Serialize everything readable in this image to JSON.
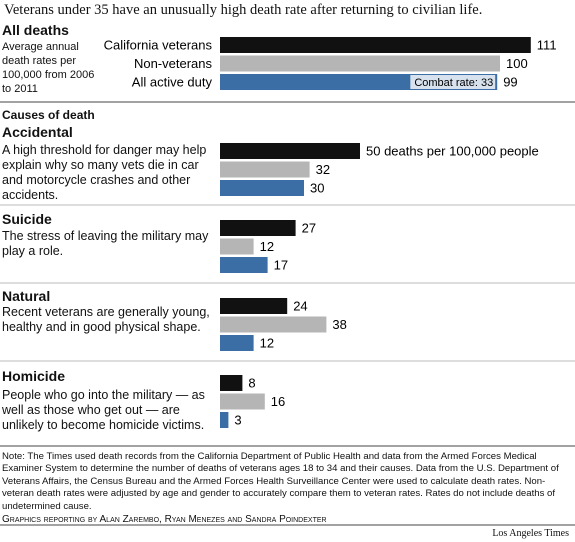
{
  "title": "Veterans under 35 have an unusually high death rate after returning to civilian life.",
  "section_title": "Causes of death",
  "chart_data": [
    {
      "type": "bar",
      "title": "All deaths",
      "subtitle": "Average annual death rates per 100,000 from 2006 to 2011",
      "categories": [
        "California veterans",
        "Non-veterans",
        "All active duty"
      ],
      "values": [
        111,
        100,
        99
      ],
      "colors": [
        "#111111",
        "#b5b5b5",
        "#3a6ea5"
      ],
      "annotation": "Combat rate: 33"
    },
    {
      "type": "bar",
      "title": "Accidental",
      "subtitle": "A high threshold for danger may help explain why so many vets die in car and motorcycle crashes and other accidents.",
      "categories": [
        null,
        null,
        null
      ],
      "values": [
        50,
        32,
        30
      ],
      "value_labels": [
        "50 deaths per 100,000 people",
        "32",
        "30"
      ],
      "colors": [
        "#111111",
        "#b5b5b5",
        "#3a6ea5"
      ]
    },
    {
      "type": "bar",
      "title": "Suicide",
      "subtitle": "The stress of leaving the military may play a role.",
      "categories": [
        null,
        null,
        null
      ],
      "values": [
        27,
        12,
        17
      ],
      "colors": [
        "#111111",
        "#b5b5b5",
        "#3a6ea5"
      ]
    },
    {
      "type": "bar",
      "title": "Natural",
      "subtitle": "Recent veterans are generally young, healthy and in good physical shape.",
      "categories": [
        null,
        null,
        null
      ],
      "values": [
        24,
        38,
        12
      ],
      "colors": [
        "#111111",
        "#b5b5b5",
        "#3a6ea5"
      ]
    },
    {
      "type": "bar",
      "title": "Homicide",
      "subtitle": "People who go into the military — as well as those who get out — are unlikely to become homicide victims.",
      "categories": [
        null,
        null,
        null
      ],
      "values": [
        8,
        16,
        3
      ],
      "colors": [
        "#111111",
        "#b5b5b5",
        "#3a6ea5"
      ]
    }
  ],
  "note": "Note: The Times used death records from the California Department of Public Health and data from the Armed Forces Medical Examiner System to determine the number of deaths of veterans ages 18 to 34 and their causes. Data from the U.S. Department of Veterans Affairs, the Census Bureau and the Armed Forces Health Surveillance Center were used to calculate death rates. Non-veteran death rates were adjusted by age and gender to accurately compare them to veteran rates. Rates do not include deaths of undetermined cause.",
  "credit": "Graphics reporting by Alan Zarembo, Ryan Menezes and Sandra Poindexter",
  "source": "Los Angeles Times"
}
